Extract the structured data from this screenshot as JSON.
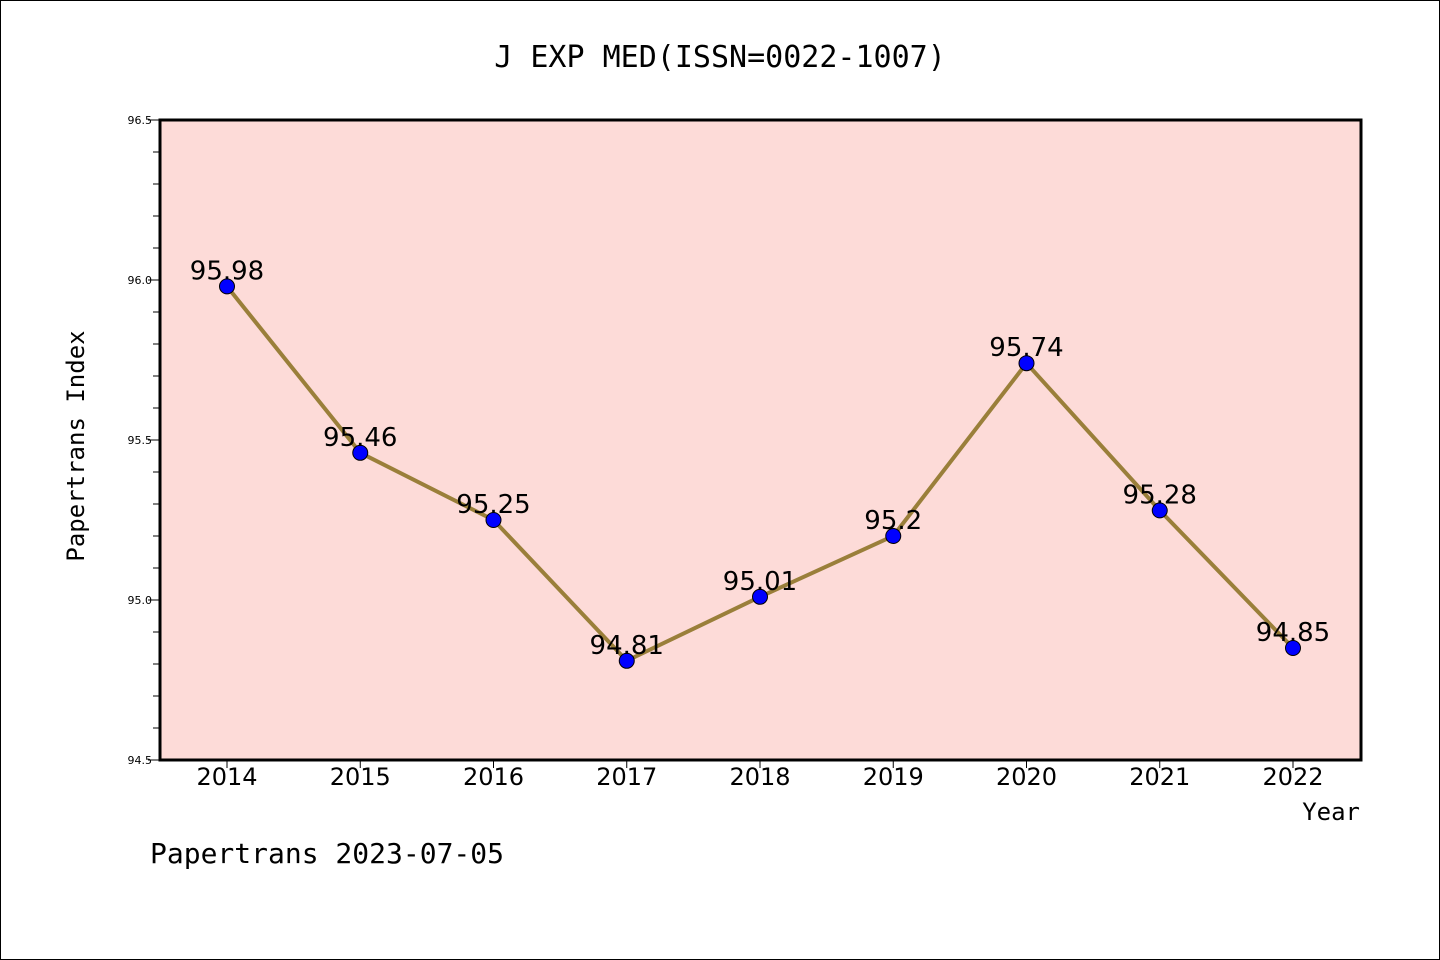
{
  "chart_data": {
    "type": "line",
    "title": "J EXP MED(ISSN=0022-1007)",
    "xlabel": "Year",
    "ylabel": "Papertrans Index",
    "categories": [
      "2014",
      "2015",
      "2016",
      "2017",
      "2018",
      "2019",
      "2020",
      "2021",
      "2022"
    ],
    "values": [
      95.98,
      95.46,
      95.25,
      94.81,
      95.01,
      95.2,
      95.74,
      95.28,
      94.85
    ],
    "data_labels": [
      "95.98",
      "95.46",
      "95.25",
      "94.81",
      "95.01",
      "95.2",
      "95.74",
      "95.28",
      "94.85"
    ],
    "ylim": [
      94.5,
      96.5
    ],
    "yticks": [
      "94.5",
      "95.0",
      "95.5",
      "96.0",
      "96.5"
    ],
    "grid": false,
    "colors": {
      "plot_background": "#fddbd8",
      "line": "#9a7f3a",
      "marker": "#0000ff"
    }
  },
  "footer": "Papertrans 2023-07-05"
}
